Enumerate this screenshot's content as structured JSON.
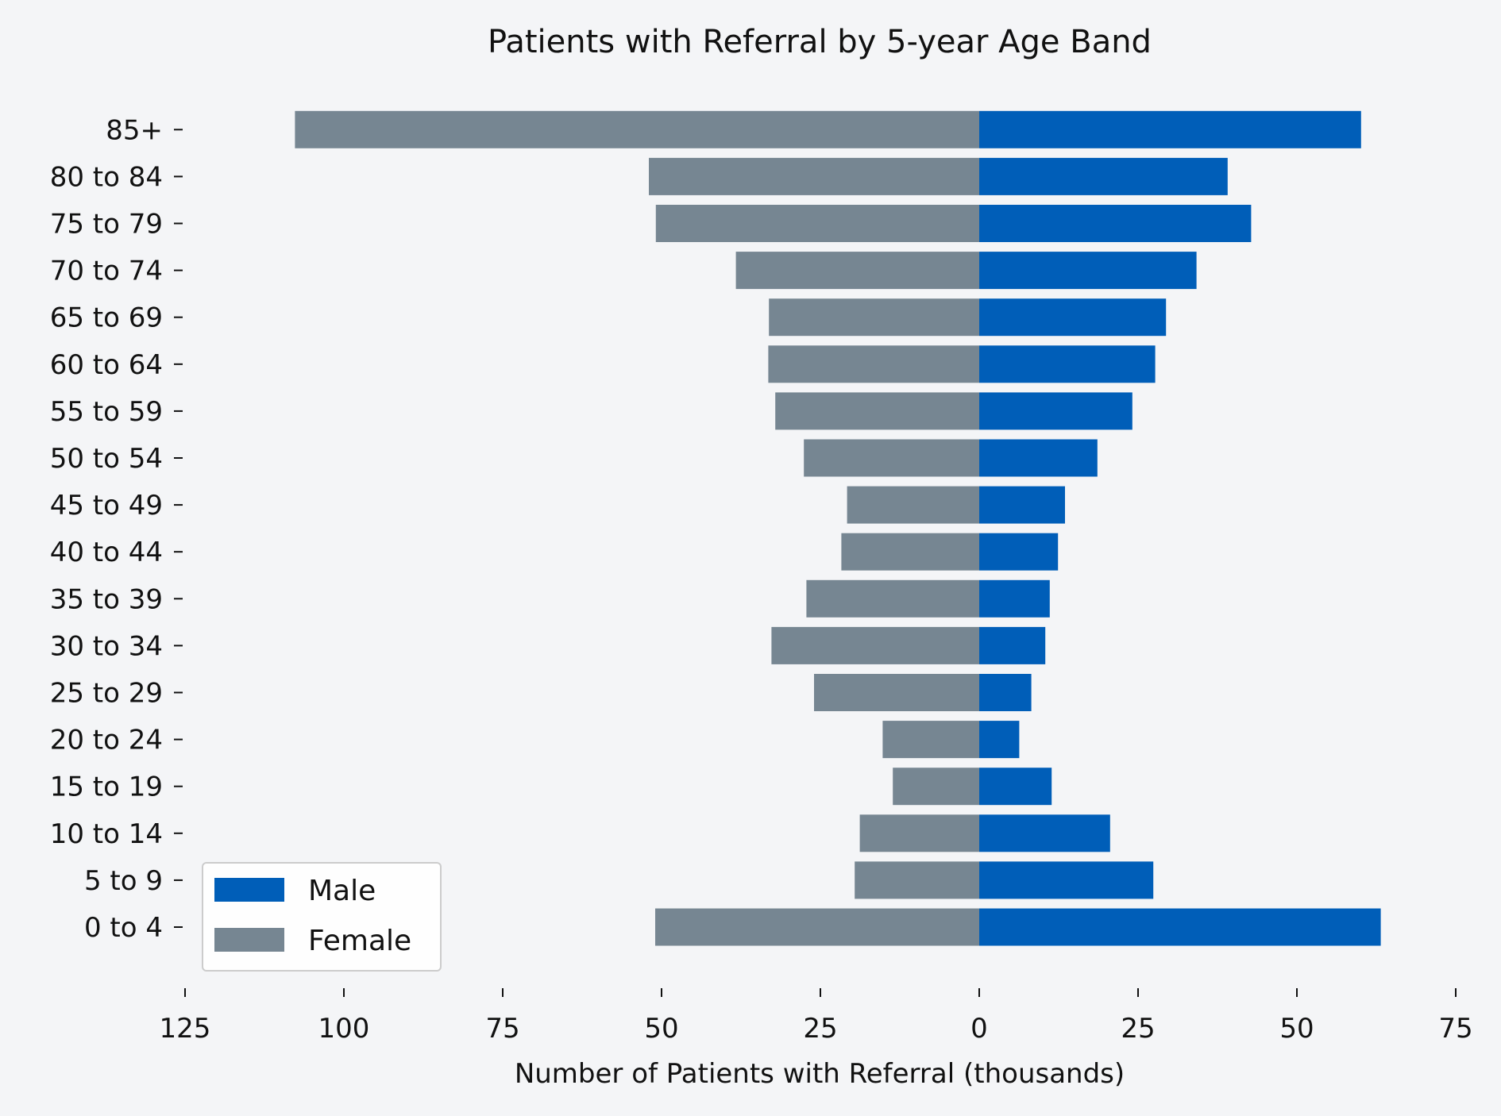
{
  "chart_data": {
    "type": "bar",
    "orientation": "horizontal",
    "title": "Patients with Referral by 5-year Age Band",
    "xlabel": "Number of Patients with Referral (thousands)",
    "ylabel": "",
    "xlim": [
      -125,
      75
    ],
    "x_ticks": [
      -125,
      -100,
      -75,
      -50,
      -25,
      0,
      25,
      50,
      75
    ],
    "x_tick_labels": [
      "125",
      "100",
      "75",
      "50",
      "25",
      "0",
      "25",
      "50",
      "75"
    ],
    "categories": [
      "0 to 4",
      "5 to 9",
      "10 to 14",
      "15 to 19",
      "20 to 24",
      "25 to 29",
      "30 to 34",
      "35 to 39",
      "40 to 44",
      "45 to 49",
      "50 to 54",
      "55 to 59",
      "60 to 64",
      "65 to 69",
      "70 to 74",
      "75 to 79",
      "80 to 84",
      "85+"
    ],
    "series": [
      {
        "name": "Male",
        "color": "#005eb8",
        "values": [
          63.2,
          27.4,
          20.6,
          11.4,
          6.3,
          8.2,
          10.4,
          11.1,
          12.4,
          13.5,
          18.6,
          24.1,
          27.7,
          29.4,
          34.2,
          42.8,
          39.1,
          60.1
        ]
      },
      {
        "name": "Female",
        "color": "#768692",
        "values": [
          -51.0,
          -19.6,
          -18.8,
          -13.6,
          -15.2,
          -26.0,
          -32.7,
          -27.2,
          -21.7,
          -20.8,
          -27.6,
          -32.1,
          -33.2,
          -33.1,
          -38.3,
          -50.9,
          -52.0,
          -107.7
        ]
      }
    ],
    "legend": {
      "position": "lower-left",
      "entries": [
        "Male",
        "Female"
      ]
    },
    "grid": false,
    "background": "#f4f5f7"
  }
}
